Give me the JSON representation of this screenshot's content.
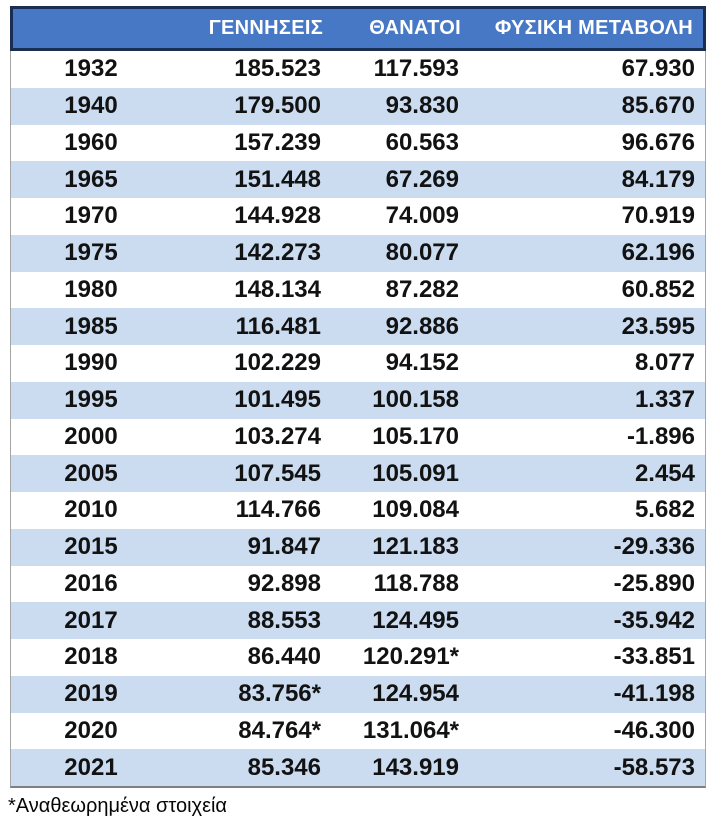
{
  "chart_data": {
    "type": "table",
    "title": "",
    "columns": [
      "",
      "ΓΕΝΝΗΣΕΙΣ",
      "ΘΑΝΑΤΟΙ",
      "ΦΥΣΙΚΗ ΜΕΤΑΒΟΛΗ"
    ],
    "column_keys": [
      "year",
      "births",
      "deaths",
      "natural_change"
    ],
    "rows": [
      [
        "1932",
        "185.523",
        "117.593",
        "67.930"
      ],
      [
        "1940",
        "179.500",
        "93.830",
        "85.670"
      ],
      [
        "1960",
        "157.239",
        "60.563",
        "96.676"
      ],
      [
        "1965",
        "151.448",
        "67.269",
        "84.179"
      ],
      [
        "1970",
        "144.928",
        "74.009",
        "70.919"
      ],
      [
        "1975",
        "142.273",
        "80.077",
        "62.196"
      ],
      [
        "1980",
        "148.134",
        "87.282",
        "60.852"
      ],
      [
        "1985",
        "116.481",
        "92.886",
        "23.595"
      ],
      [
        "1990",
        "102.229",
        "94.152",
        "8.077"
      ],
      [
        "1995",
        "101.495",
        "100.158",
        "1.337"
      ],
      [
        "2000",
        "103.274",
        "105.170",
        "-1.896"
      ],
      [
        "2005",
        "107.545",
        "105.091",
        "2.454"
      ],
      [
        "2010",
        "114.766",
        "109.084",
        "5.682"
      ],
      [
        "2015",
        "91.847",
        "121.183",
        "-29.336"
      ],
      [
        "2016",
        "92.898",
        "118.788",
        "-25.890"
      ],
      [
        "2017",
        "88.553",
        "124.495",
        "-35.942"
      ],
      [
        "2018",
        "86.440",
        "120.291*",
        "-33.851"
      ],
      [
        "2019",
        "83.756*",
        "124.954",
        "-41.198"
      ],
      [
        "2020",
        "84.764*",
        "131.064*",
        "-46.300"
      ],
      [
        "2021",
        "85.346",
        "143.919",
        "-58.573"
      ]
    ],
    "footnote": "*Αναθεωρημένα στοιχεία",
    "layout": {
      "banding": "alternating white and light-blue rows starting white",
      "value_alignment": "right",
      "year_alignment": "center",
      "grid": "off",
      "legend": "none"
    }
  },
  "colors": {
    "header_bg": "#4678C6",
    "header_text": "#FFFFFF",
    "header_outline": "#1A2E52",
    "band_blue": "#CBDCF1",
    "band_white": "#FFFFFF",
    "body_text": "#121212",
    "side_border": "#A5A5A5",
    "bottom_border": "#7F7F7F"
  }
}
